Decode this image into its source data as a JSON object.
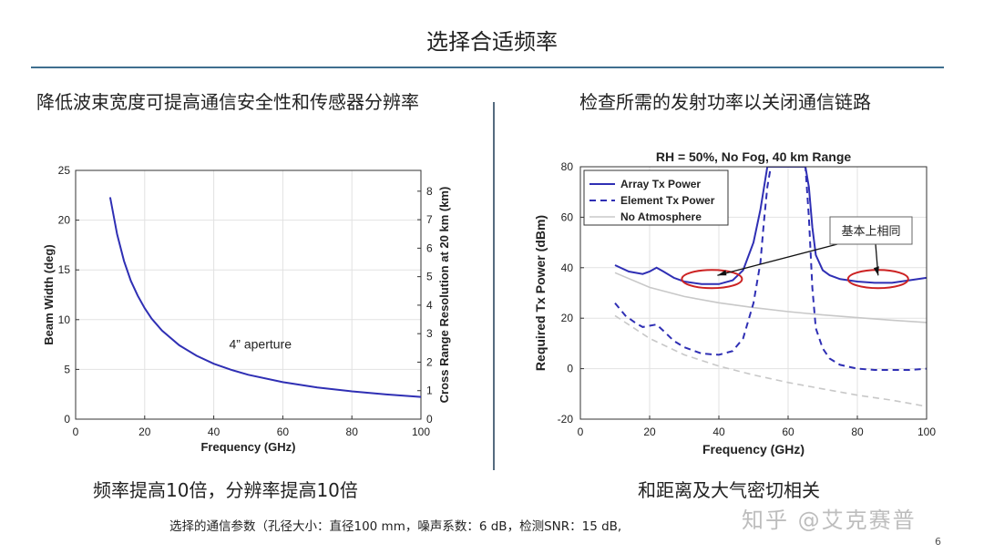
{
  "slide": {
    "title": "选择合适频率",
    "left_heading": "降低波束宽度可提高通信安全性和传感器分辨率",
    "right_heading": "检查所需的发射功率以关闭通信链路",
    "left_caption": "频率提高10倍，分辨率提高10倍",
    "right_caption": "和距离及大气密切相关",
    "footnote": "选择的通信参数（孔径大小：直径100 mm，噪声系数：6 dB，检测SNR：15 dB,",
    "watermark": "知乎 @艾克赛普",
    "page_number": "6"
  },
  "colors": {
    "title_rule": "#3f6f8f",
    "primary_line": "#2f2fb4",
    "no_atmosphere_line": "#c8c8c8",
    "highlight_ellipse": "#cc2222"
  },
  "chart_data": [
    {
      "type": "line",
      "title": "",
      "xlabel": "Frequency (GHz)",
      "ylabel": "Beam Width (deg)",
      "y2label": "Cross Range Resolution at 20 km (km)",
      "xlim": [
        0,
        100
      ],
      "ylim": [
        0,
        25
      ],
      "y2lim": [
        0,
        8.73
      ],
      "xticks": [
        "0",
        "20",
        "40",
        "60",
        "80",
        "100"
      ],
      "yticks": [
        "0",
        "5",
        "10",
        "15",
        "20",
        "25"
      ],
      "y2ticks": [
        "0",
        "1",
        "2",
        "3",
        "4",
        "5",
        "6",
        "7",
        "8"
      ],
      "annotation": "4” aperture",
      "series": [
        {
          "name": "",
          "x": [
            10,
            12,
            14,
            16,
            18,
            20,
            22,
            25,
            30,
            35,
            40,
            45,
            50,
            60,
            70,
            80,
            90,
            100
          ],
          "y": [
            22.3,
            18.6,
            15.9,
            13.9,
            12.4,
            11.15,
            10.1,
            8.9,
            7.43,
            6.37,
            5.57,
            4.96,
            4.46,
            3.72,
            3.19,
            2.79,
            2.48,
            2.23
          ]
        }
      ]
    },
    {
      "type": "line",
      "title": "RH = 50%, No Fog, 40 km Range",
      "xlabel": "Frequency (GHz)",
      "ylabel": "Required Tx Power (dBm)",
      "xlim": [
        0,
        100
      ],
      "ylim": [
        -20,
        80
      ],
      "xticks": [
        "0",
        "20",
        "40",
        "60",
        "80",
        "100"
      ],
      "yticks": [
        "-20",
        "0",
        "20",
        "40",
        "60",
        "80"
      ],
      "legend_position": "top-left",
      "callout": "基本上相同",
      "series": [
        {
          "name": "Array Tx Power",
          "style": "solid",
          "x": [
            10,
            14,
            18,
            20,
            22,
            24,
            27,
            30,
            35,
            40,
            44,
            47,
            50,
            52,
            54,
            55,
            65,
            66,
            67,
            68,
            70,
            72,
            75,
            80,
            85,
            90,
            95,
            100
          ],
          "y": [
            41,
            38.5,
            37.5,
            38.5,
            40,
            38.5,
            36,
            34.5,
            33.5,
            33.5,
            35,
            39,
            50,
            63,
            80,
            80,
            80,
            72,
            56,
            45,
            39,
            37,
            35.5,
            34.5,
            34,
            34,
            35,
            36
          ]
        },
        {
          "name": "Element Tx Power",
          "style": "dashed",
          "x": [
            10,
            13,
            16,
            18,
            20,
            22,
            24,
            27,
            30,
            35,
            40,
            44,
            47,
            50,
            52,
            53,
            54,
            55,
            65,
            66,
            67,
            68,
            70,
            72,
            75,
            80,
            85,
            90,
            95,
            100
          ],
          "y": [
            26,
            21,
            18,
            16.5,
            17,
            17.5,
            15,
            11,
            8.5,
            6,
            5.5,
            7,
            12,
            26,
            42,
            58,
            72,
            80,
            80,
            60,
            32,
            16,
            8,
            4,
            1.5,
            0,
            -0.5,
            -0.5,
            -0.5,
            0
          ]
        },
        {
          "name": "No Atmosphere",
          "style": "solid-light",
          "x": [
            10,
            20,
            30,
            40,
            50,
            60,
            70,
            80,
            90,
            100
          ],
          "y": [
            38,
            32.2,
            28.6,
            26.1,
            24.2,
            22.6,
            21.3,
            20.2,
            19.2,
            18.3
          ]
        },
        {
          "name": "",
          "style": "dashed-light",
          "x": [
            10,
            20,
            30,
            40,
            50,
            60,
            70,
            80,
            90,
            100
          ],
          "y": [
            21,
            12,
            5.5,
            1,
            -2.5,
            -5.5,
            -8,
            -10.5,
            -12.5,
            -15
          ]
        }
      ],
      "highlights": [
        {
          "x_center": 38,
          "y_center": 35.5
        },
        {
          "x_center": 86,
          "y_center": 35.5
        }
      ]
    }
  ]
}
